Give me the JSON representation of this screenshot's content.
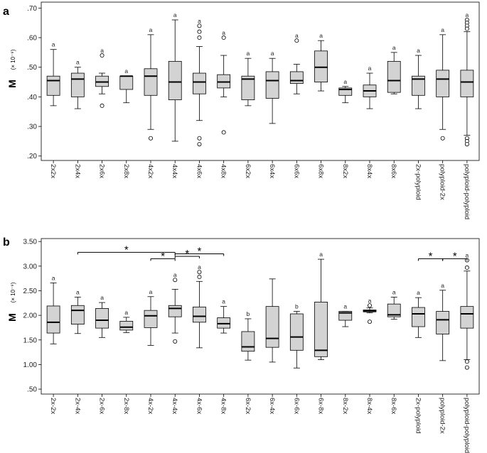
{
  "chart_data": [
    {
      "type": "boxplot",
      "panel_label": "a",
      "ylabel": "M",
      "ylabel_unit": "(× 10⁻⁹)",
      "ylim": [
        0.185,
        0.72
      ],
      "yticks": [
        ".20",
        ".30",
        ".40",
        ".50",
        ".60",
        ".70"
      ],
      "ytick_values": [
        0.2,
        0.3,
        0.4,
        0.5,
        0.6,
        0.7
      ],
      "categories": [
        "2x2x",
        "2x4x",
        "2x6x",
        "2x8x",
        "4x2x",
        "4x4x",
        "4x6x",
        "4x8x",
        "6x2x",
        "6x4x",
        "6x6x",
        "6x8x",
        "8x2x",
        "8x4x",
        "8x6x",
        "2x-polyploid",
        "polyploid-2x",
        "polyploid-polyploid"
      ],
      "boxes": [
        {
          "category": "2x2x",
          "whisker_low": 0.37,
          "q1": 0.405,
          "median": 0.455,
          "q3": 0.47,
          "whisker_high": 0.56,
          "outliers": [],
          "annotation": "a"
        },
        {
          "category": "2x4x",
          "whisker_low": 0.36,
          "q1": 0.4,
          "median": 0.46,
          "q3": 0.48,
          "whisker_high": 0.5,
          "outliers": [],
          "annotation": "a"
        },
        {
          "category": "2x6x",
          "whisker_low": 0.41,
          "q1": 0.435,
          "median": 0.45,
          "q3": 0.47,
          "whisker_high": 0.48,
          "outliers": [
            0.54,
            0.37
          ],
          "annotation": "a"
        },
        {
          "category": "2x8x",
          "whisker_low": 0.38,
          "q1": 0.425,
          "median": 0.47,
          "q3": 0.47,
          "whisker_high": 0.47,
          "outliers": [],
          "annotation": "a"
        },
        {
          "category": "4x2x",
          "whisker_low": 0.29,
          "q1": 0.405,
          "median": 0.47,
          "q3": 0.495,
          "whisker_high": 0.61,
          "outliers": [
            0.26
          ],
          "annotation": "a"
        },
        {
          "category": "4x4x",
          "whisker_low": 0.25,
          "q1": 0.39,
          "median": 0.45,
          "q3": 0.52,
          "whisker_high": 0.66,
          "outliers": [],
          "annotation": "a"
        },
        {
          "category": "4x6x",
          "whisker_low": 0.32,
          "q1": 0.41,
          "median": 0.45,
          "q3": 0.48,
          "whisker_high": 0.57,
          "outliers": [
            0.64,
            0.62,
            0.6,
            0.26,
            0.24
          ],
          "annotation": "a"
        },
        {
          "category": "4x8x",
          "whisker_low": 0.4,
          "q1": 0.43,
          "median": 0.45,
          "q3": 0.475,
          "whisker_high": 0.54,
          "outliers": [
            0.6,
            0.28
          ],
          "annotation": "a"
        },
        {
          "category": "6x2x",
          "whisker_low": 0.37,
          "q1": 0.39,
          "median": 0.46,
          "q3": 0.47,
          "whisker_high": 0.53,
          "outliers": [],
          "annotation": "a"
        },
        {
          "category": "6x4x",
          "whisker_low": 0.31,
          "q1": 0.395,
          "median": 0.455,
          "q3": 0.485,
          "whisker_high": 0.53,
          "outliers": [],
          "annotation": "a"
        },
        {
          "category": "6x6x",
          "whisker_low": 0.41,
          "q1": 0.445,
          "median": 0.455,
          "q3": 0.485,
          "whisker_high": 0.51,
          "outliers": [
            0.59
          ],
          "annotation": "a"
        },
        {
          "category": "6x8x",
          "whisker_low": 0.42,
          "q1": 0.45,
          "median": 0.5,
          "q3": 0.555,
          "whisker_high": 0.59,
          "outliers": [],
          "annotation": "a"
        },
        {
          "category": "8x2x",
          "whisker_low": 0.38,
          "q1": 0.405,
          "median": 0.425,
          "q3": 0.43,
          "whisker_high": 0.435,
          "outliers": [],
          "annotation": "a"
        },
        {
          "category": "8x4x",
          "whisker_low": 0.36,
          "q1": 0.4,
          "median": 0.42,
          "q3": 0.44,
          "whisker_high": 0.48,
          "outliers": [],
          "annotation": "a"
        },
        {
          "category": "8x6x",
          "whisker_low": 0.41,
          "q1": 0.415,
          "median": 0.455,
          "q3": 0.52,
          "whisker_high": 0.55,
          "outliers": [],
          "annotation": "a"
        },
        {
          "category": "2x-polyploid",
          "whisker_low": 0.36,
          "q1": 0.405,
          "median": 0.46,
          "q3": 0.47,
          "whisker_high": 0.54,
          "outliers": [],
          "annotation": "a"
        },
        {
          "category": "polyploid-2x",
          "whisker_low": 0.29,
          "q1": 0.4,
          "median": 0.46,
          "q3": 0.49,
          "whisker_high": 0.61,
          "outliers": [
            0.26
          ],
          "annotation": "a"
        },
        {
          "category": "polyploid-polyploid",
          "whisker_low": 0.27,
          "q1": 0.4,
          "median": 0.45,
          "q3": 0.49,
          "whisker_high": 0.62,
          "outliers": [
            0.66,
            0.65,
            0.64,
            0.63,
            0.26,
            0.25,
            0.24
          ],
          "annotation": "a"
        }
      ],
      "significance_brackets": []
    },
    {
      "type": "boxplot",
      "panel_label": "b",
      "ylabel": "M",
      "ylabel_unit": "(× 10⁻⁹)",
      "ylim": [
        0.4,
        3.56
      ],
      "yticks": [
        ".50",
        "1.00",
        "1.50",
        "2.00",
        "2.50",
        "3.00",
        "3.50"
      ],
      "ytick_values": [
        0.5,
        1.0,
        1.5,
        2.0,
        2.5,
        3.0,
        3.5
      ],
      "categories": [
        "2x-2x",
        "2x-4x",
        "2x-6x",
        "2x-8x",
        "4x-2x",
        "4x-4x",
        "4x-6x",
        "4x-8x",
        "6x-2x",
        "6x-4x",
        "6x-6x",
        "6x-8x",
        "8x-2x",
        "8x-4x",
        "8x-6x",
        "2x-polyploid",
        "polyploid-2x",
        "polyploid-polyploid"
      ],
      "boxes": [
        {
          "category": "2x-2x",
          "whisker_low": 1.42,
          "q1": 1.64,
          "median": 1.86,
          "q3": 2.19,
          "whisker_high": 2.66,
          "outliers": [],
          "annotation": "a"
        },
        {
          "category": "2x-4x",
          "whisker_low": 1.63,
          "q1": 1.82,
          "median": 2.1,
          "q3": 2.2,
          "whisker_high": 2.37,
          "outliers": [],
          "annotation": "a"
        },
        {
          "category": "2x-6x",
          "whisker_low": 1.55,
          "q1": 1.74,
          "median": 1.9,
          "q3": 2.14,
          "whisker_high": 2.26,
          "outliers": [],
          "annotation": "a"
        },
        {
          "category": "2x-8x",
          "whisker_low": 1.65,
          "q1": 1.7,
          "median": 1.76,
          "q3": 1.88,
          "whisker_high": 1.96,
          "outliers": [],
          "annotation": "a"
        },
        {
          "category": "4x-2x",
          "whisker_low": 1.39,
          "q1": 1.75,
          "median": 1.99,
          "q3": 2.1,
          "whisker_high": 2.38,
          "outliers": [],
          "annotation": "a"
        },
        {
          "category": "4x-4x",
          "whisker_low": 1.64,
          "q1": 1.97,
          "median": 2.14,
          "q3": 2.2,
          "whisker_high": 2.53,
          "outliers": [
            2.72,
            1.47
          ],
          "annotation": "a"
        },
        {
          "category": "4x-6x",
          "whisker_low": 1.34,
          "q1": 1.86,
          "median": 1.98,
          "q3": 2.17,
          "whisker_high": 2.69,
          "outliers": [
            2.88,
            2.78
          ],
          "annotation": "a"
        },
        {
          "category": "4x-8x",
          "whisker_low": 1.64,
          "q1": 1.74,
          "median": 1.83,
          "q3": 1.95,
          "whisker_high": 2.18,
          "outliers": [],
          "annotation": "a"
        },
        {
          "category": "6x-2x",
          "whisker_low": 1.09,
          "q1": 1.27,
          "median": 1.36,
          "q3": 1.67,
          "whisker_high": 1.93,
          "outliers": [],
          "annotation": "b"
        },
        {
          "category": "6x-4x",
          "whisker_low": 1.05,
          "q1": 1.35,
          "median": 1.53,
          "q3": 2.18,
          "whisker_high": 2.74,
          "outliers": [],
          "annotation": ""
        },
        {
          "category": "6x-6x",
          "whisker_low": 0.93,
          "q1": 1.29,
          "median": 1.56,
          "q3": 2.03,
          "whisker_high": 2.08,
          "outliers": [],
          "annotation": "b"
        },
        {
          "category": "6x-8x",
          "whisker_low": 1.1,
          "q1": 1.16,
          "median": 1.29,
          "q3": 2.27,
          "whisker_high": 3.14,
          "outliers": [],
          "annotation": "a"
        },
        {
          "category": "8x-2x",
          "whisker_low": 1.77,
          "q1": 1.9,
          "median": 2.05,
          "q3": 2.08,
          "whisker_high": 2.08,
          "outliers": [],
          "annotation": "a"
        },
        {
          "category": "8x-4x",
          "whisker_low": 2.05,
          "q1": 2.07,
          "median": 2.09,
          "q3": 2.11,
          "whisker_high": 2.15,
          "outliers": [
            2.2,
            1.87
          ],
          "annotation": "a"
        },
        {
          "category": "8x-6x",
          "whisker_low": 1.92,
          "q1": 1.97,
          "median": 2.01,
          "q3": 2.23,
          "whisker_high": 2.37,
          "outliers": [],
          "annotation": "a"
        },
        {
          "category": "2x-polyploid",
          "whisker_low": 1.55,
          "q1": 1.77,
          "median": 2.03,
          "q3": 2.16,
          "whisker_high": 2.36,
          "outliers": [],
          "annotation": "a"
        },
        {
          "category": "polyploid-2x",
          "whisker_low": 1.08,
          "q1": 1.62,
          "median": 1.91,
          "q3": 2.08,
          "whisker_high": 2.51,
          "outliers": [],
          "annotation": "a"
        },
        {
          "category": "polyploid-polyploid",
          "whisker_low": 1.1,
          "q1": 1.74,
          "median": 2.03,
          "q3": 2.18,
          "whisker_high": 2.9,
          "outliers": [
            3.12,
            2.97,
            1.06,
            0.94
          ],
          "annotation": "a"
        }
      ],
      "significance_brackets": [
        {
          "from": "2x-4x",
          "to": "4x-4x",
          "level": 3.28,
          "label": "*"
        },
        {
          "from": "4x-2x",
          "to": "4x-4x",
          "level": 3.15,
          "label": "*"
        },
        {
          "from": "4x-4x",
          "to": "4x-6x",
          "level": 3.2,
          "label": "*"
        },
        {
          "from": "4x-4x",
          "to": "4x-8x",
          "level": 3.25,
          "label": "*"
        },
        {
          "from": "2x-polyploid",
          "to": "polyploid-2x",
          "level": 3.15,
          "label": "*"
        },
        {
          "from": "polyploid-2x",
          "to": "polyploid-polyploid",
          "level": 3.15,
          "label": "*"
        }
      ]
    }
  ]
}
